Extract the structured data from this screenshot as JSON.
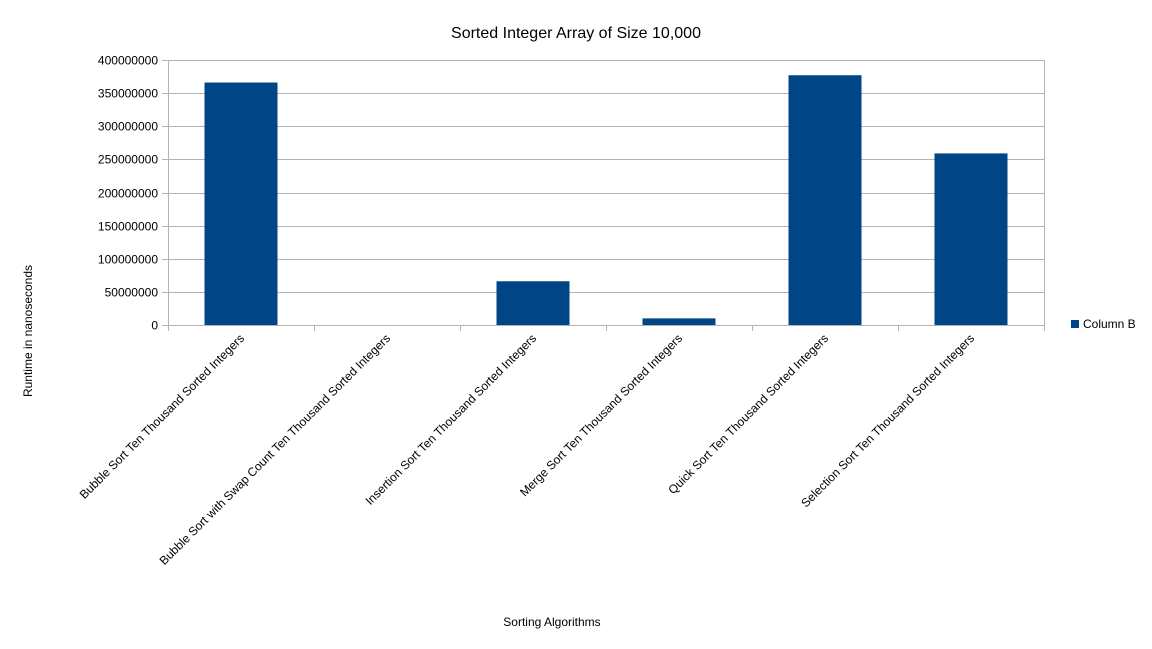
{
  "chart_data": {
    "type": "bar",
    "title": "Sorted Integer Array of Size 10,000",
    "xlabel": "Sorting Algorithms",
    "ylabel": "Runtime in nanoseconds",
    "categories": [
      "Bubble Sort Ten Thousand Sorted Integers",
      "Bubble Sort with Swap Count Ten Thousand Sorted Integers",
      "Insertion Sort Ten Thousand Sorted Integers",
      "Merge Sort Ten Thousand Sorted Integers",
      "Quick Sort Ten Thousand Sorted Integers",
      "Selection Sort Ten Thousand Sorted Integers"
    ],
    "series": [
      {
        "name": "Column B",
        "color": "#004586",
        "values": [
          366000000,
          0,
          66000000,
          10000000,
          377000000,
          259000000
        ]
      }
    ],
    "ylim": [
      0,
      400000000
    ],
    "yticks": [
      "0",
      "50000000",
      "100000000",
      "150000000",
      "200000000",
      "250000000",
      "300000000",
      "350000000",
      "400000000"
    ],
    "grid": true,
    "legend_position": "right"
  }
}
